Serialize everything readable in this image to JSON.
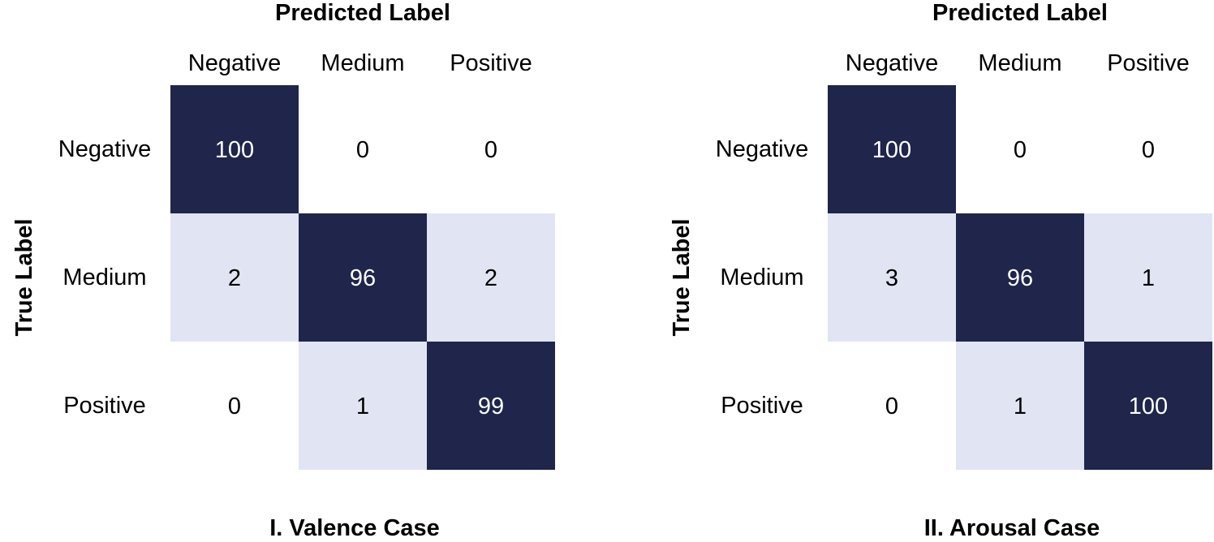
{
  "colors": {
    "high": "#1f254b",
    "low": "#e1e5f3",
    "zero": "#ffffff",
    "text_dark": "#000000",
    "text_light": "#ffffff"
  },
  "chart_data": [
    {
      "type": "heatmap",
      "title": "I. Valence Case",
      "xlabel": "Predicted Label",
      "ylabel": "True Label",
      "x_categories": [
        "Negative",
        "Medium",
        "Positive"
      ],
      "y_categories": [
        "Negative",
        "Medium",
        "Positive"
      ],
      "values": [
        [
          100,
          0,
          0
        ],
        [
          2,
          96,
          2
        ],
        [
          0,
          1,
          99
        ]
      ]
    },
    {
      "type": "heatmap",
      "title": "II. Arousal Case",
      "xlabel": "Predicted Label",
      "ylabel": "True Label",
      "x_categories": [
        "Negative",
        "Medium",
        "Positive"
      ],
      "y_categories": [
        "Negative",
        "Medium",
        "Positive"
      ],
      "values": [
        [
          100,
          0,
          0
        ],
        [
          3,
          96,
          1
        ],
        [
          0,
          1,
          100
        ]
      ]
    }
  ]
}
